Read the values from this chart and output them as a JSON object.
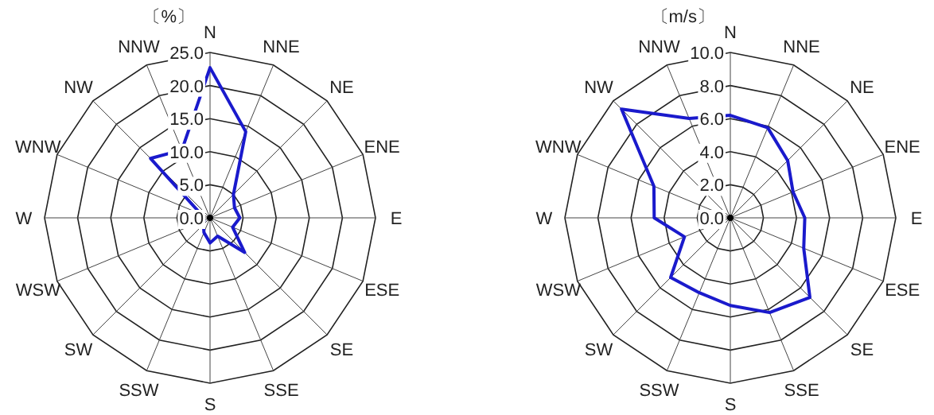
{
  "chart_data": [
    {
      "type": "radar",
      "ylabel": "〔%〕",
      "categories": [
        "N",
        "NNE",
        "NE",
        "ENE",
        "E",
        "ESE",
        "SE",
        "SSE",
        "S",
        "SSW",
        "SW",
        "WSW",
        "W",
        "WNW",
        "NW",
        "NNW"
      ],
      "ylim": [
        0,
        25
      ],
      "yticks": [
        {
          "value": 0,
          "label": "0.0"
        },
        {
          "value": 5,
          "label": "5.0"
        },
        {
          "value": 10,
          "label": "10.0"
        },
        {
          "value": 15,
          "label": "15.0"
        },
        {
          "value": 20,
          "label": "20.0"
        },
        {
          "value": 25,
          "label": "25.0"
        }
      ],
      "grid": true,
      "series": [
        {
          "color": "#1a1acc",
          "values": [
            22.7,
            14.1,
            5.0,
            4.0,
            4.5,
            3.7,
            7.4,
            3.0,
            3.8,
            2.4,
            1.4,
            1.0,
            1.2,
            1.5,
            12.7,
            11.1
          ]
        }
      ]
    },
    {
      "type": "radar",
      "ylabel": "〔m/s〕",
      "categories": [
        "N",
        "NNE",
        "NE",
        "ENE",
        "E",
        "ESE",
        "SE",
        "SSE",
        "S",
        "SSW",
        "SW",
        "WSW",
        "W",
        "WNW",
        "NW",
        "NNW"
      ],
      "ylim": [
        0,
        10
      ],
      "yticks": [
        {
          "value": 0,
          "label": "0.0"
        },
        {
          "value": 2,
          "label": "2.0"
        },
        {
          "value": 4,
          "label": "4.0"
        },
        {
          "value": 6,
          "label": "6.0"
        },
        {
          "value": 8,
          "label": "8.0"
        },
        {
          "value": 10,
          "label": "10.0"
        }
      ],
      "grid": true,
      "series": [
        {
          "color": "#1a1acc",
          "values": [
            6.2,
            5.9,
            4.9,
            4.1,
            4.5,
            4.8,
            6.8,
            6.2,
            5.3,
            4.9,
            5.1,
            3.0,
            4.6,
            5.0,
            9.3,
            6.5
          ]
        }
      ]
    }
  ]
}
